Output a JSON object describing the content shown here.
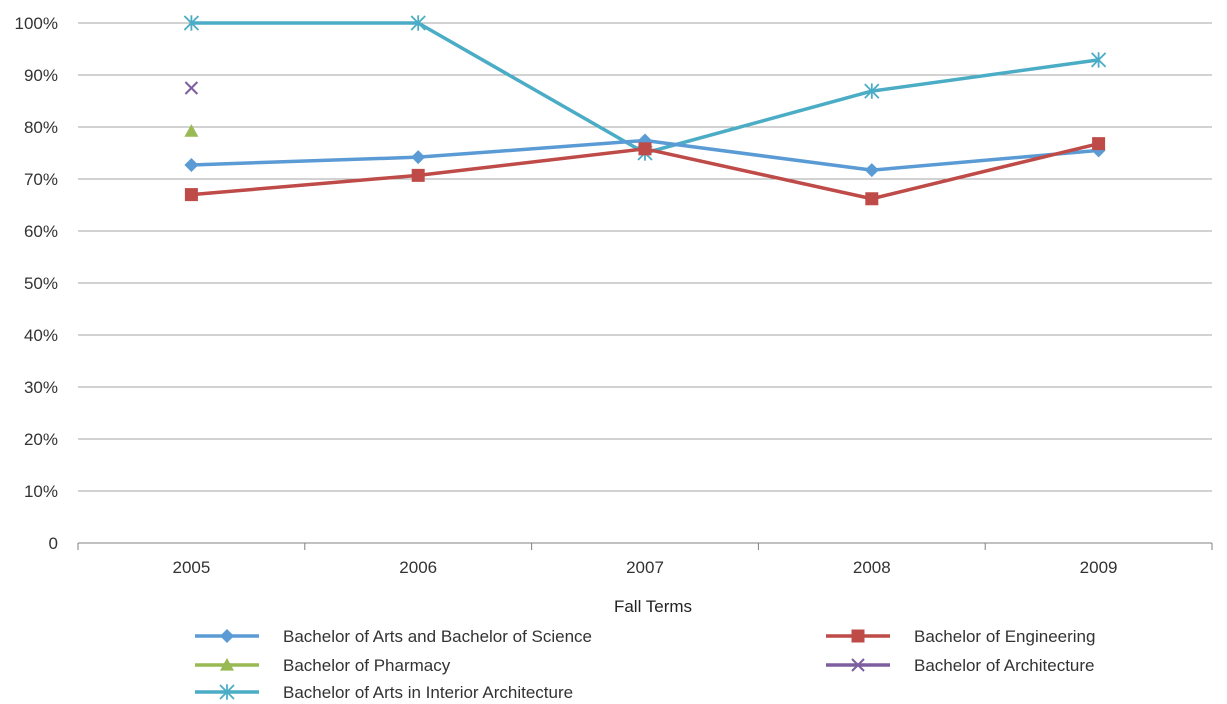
{
  "chart_data": {
    "type": "line",
    "title": "",
    "xlabel": "Fall Terms",
    "ylabel": "",
    "categories": [
      "2005",
      "2006",
      "2007",
      "2008",
      "2009"
    ],
    "ylim": [
      0,
      100
    ],
    "yticks": [
      0,
      10,
      20,
      30,
      40,
      50,
      60,
      70,
      80,
      90,
      100
    ],
    "ytick_labels": [
      "0",
      "10%",
      "20%",
      "30%",
      "40%",
      "50%",
      "60%",
      "70%",
      "80%",
      "90%",
      "100%"
    ],
    "grid": true,
    "legend_position": "bottom",
    "series": [
      {
        "name": "Bachelor of Arts and Bachelor of Science",
        "values": [
          72.7,
          74.2,
          77.4,
          71.7,
          75.5
        ],
        "color": "#5b9bd5",
        "marker": "diamond"
      },
      {
        "name": "Bachelor of Engineering",
        "values": [
          67.0,
          70.7,
          75.8,
          66.2,
          76.8
        ],
        "color": "#be4b48",
        "marker": "square"
      },
      {
        "name": "Bachelor of Pharmacy",
        "values": [
          79.2,
          null,
          null,
          null,
          null
        ],
        "color": "#98b954",
        "marker": "triangle"
      },
      {
        "name": "Bachelor of Architecture",
        "values": [
          87.5,
          null,
          null,
          null,
          null
        ],
        "color": "#7d5fa0",
        "marker": "x"
      },
      {
        "name": "Bachelor of Arts in Interior Architecture",
        "values": [
          100,
          100,
          75.0,
          86.9,
          92.9
        ],
        "color": "#4bacc6",
        "marker": "asterisk"
      }
    ]
  }
}
